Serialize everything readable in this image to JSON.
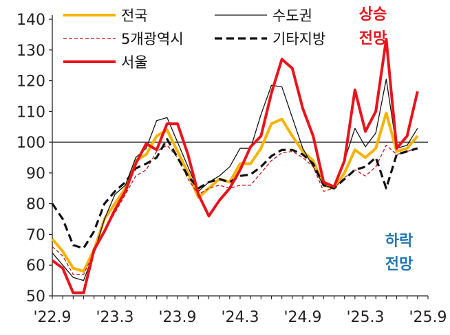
{
  "chart_data": {
    "type": "line",
    "title": "",
    "xlabel": "",
    "ylabel": "",
    "ylim": [
      50,
      140
    ],
    "yticks": [
      50,
      60,
      70,
      80,
      90,
      100,
      110,
      120,
      130,
      140
    ],
    "x_tick_labels": [
      "'22.9",
      "'23.3",
      "'23.9",
      "'24.3",
      "'24.9",
      "'25.3",
      "'25.9"
    ],
    "reference_line": 100,
    "grid": false,
    "legend_position": "top",
    "annotations": {
      "up_line1": "상승",
      "up_line2": "전망",
      "up_color": "#e8141b",
      "down_line1": "하락",
      "down_line2": "전망",
      "down_color": "#1f77b4"
    },
    "x": [
      "2022.09",
      "2022.10",
      "2022.11",
      "2022.12",
      "2023.01",
      "2023.02",
      "2023.03",
      "2023.04",
      "2023.05",
      "2023.06",
      "2023.07",
      "2023.08",
      "2023.09",
      "2023.10",
      "2023.11",
      "2023.12",
      "2024.01",
      "2024.02",
      "2024.03",
      "2024.04",
      "2024.05",
      "2024.06",
      "2024.07",
      "2024.08",
      "2024.09",
      "2024.10",
      "2024.11",
      "2024.12",
      "2025.01",
      "2025.02",
      "2025.03",
      "2025.04",
      "2025.05",
      "2025.06",
      "2025.07",
      "2025.08",
      "2025.09"
    ],
    "series": [
      {
        "name": "전국",
        "color": "#f6b300",
        "dash": "solid",
        "width": 4,
        "values": [
          68.5,
          64.5,
          59,
          58,
          65,
          75,
          80,
          85,
          94,
          96,
          102,
          104,
          97,
          90,
          82,
          85,
          88,
          87,
          93,
          93,
          98,
          106,
          107.5,
          102,
          97,
          94,
          86,
          85,
          90,
          97.5,
          95,
          98,
          109.5,
          97,
          98,
          102,
          null
        ]
      },
      {
        "name": "수도권",
        "color": "#111111",
        "dash": "solid",
        "width": 1.3,
        "values": [
          64,
          60,
          56,
          55,
          64,
          75,
          83,
          86,
          95,
          98,
          107,
          108,
          100,
          92,
          84,
          87,
          89,
          92,
          98,
          98,
          109,
          118.5,
          118,
          108,
          98,
          92,
          86,
          85,
          94,
          104.5,
          98.5,
          103,
          120.5,
          98,
          99,
          104.5,
          null
        ]
      },
      {
        "name": "5개광역시",
        "color": "#c0141b",
        "dash": "5,3",
        "width": 1.3,
        "values": [
          66,
          63,
          57,
          57,
          64,
          71,
          77,
          83,
          89,
          91,
          97,
          99,
          95,
          88,
          83,
          85,
          86,
          85,
          86,
          86,
          90,
          94,
          96.5,
          97,
          95,
          92,
          84,
          85,
          88.5,
          91,
          89,
          92,
          99,
          96,
          97,
          98,
          null
        ]
      },
      {
        "name": "기타지방",
        "color": "#111111",
        "dash": "11,6",
        "width": 3.2,
        "values": [
          80,
          75,
          66.5,
          65.5,
          71,
          80,
          84,
          87,
          91.5,
          93,
          95,
          101,
          95,
          89,
          85,
          87,
          88,
          87,
          89,
          89.5,
          92,
          95.5,
          97.5,
          97.5,
          96,
          93,
          86,
          85,
          88,
          91,
          92,
          95,
          85,
          96,
          97,
          98,
          null
        ]
      },
      {
        "name": "서울",
        "color": "#e8141b",
        "dash": "solid",
        "width": 4,
        "values": [
          61.5,
          59,
          51,
          51,
          65,
          71,
          78,
          84,
          93,
          99.5,
          97.5,
          106,
          106,
          96,
          83,
          76,
          81,
          85,
          91,
          98.5,
          102,
          116,
          127,
          124,
          111,
          102,
          87,
          85.5,
          94,
          117,
          103.5,
          110,
          133.5,
          98,
          102,
          116.5,
          null
        ]
      }
    ]
  }
}
